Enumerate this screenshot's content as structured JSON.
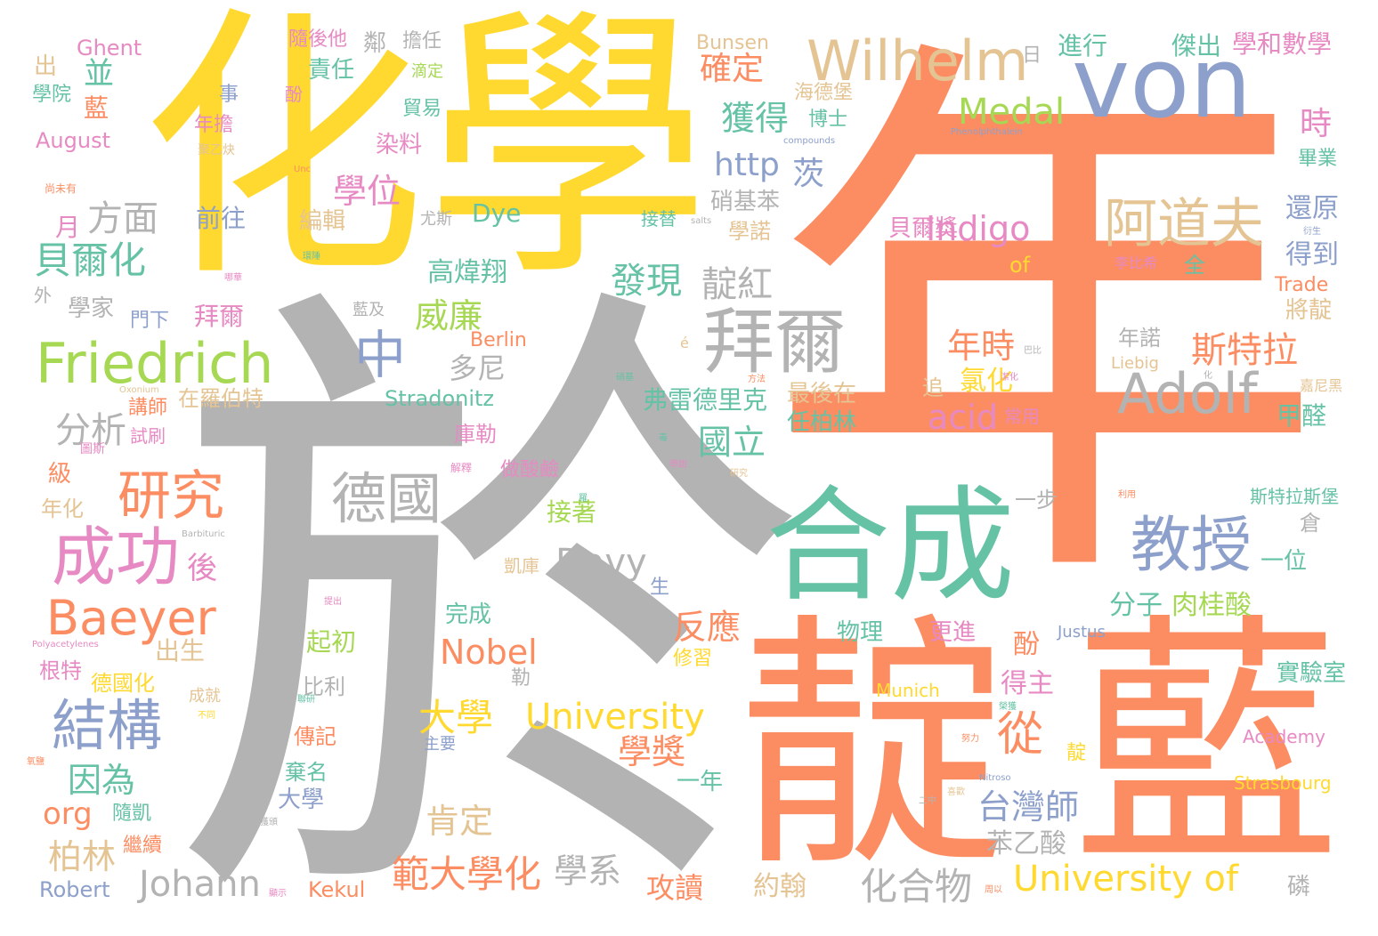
{
  "palette": {
    "gray": "#b3b3b3",
    "orange": "#fc8d62",
    "yellow": "#ffd92f",
    "teal": "#66c2a5",
    "blue": "#8da0cb",
    "pink": "#e78ac3",
    "green": "#a6d854",
    "tan": "#e5c494"
  },
  "words": [
    {
      "text": "於",
      "color": "gray"
    },
    {
      "text": "年",
      "color": "orange"
    },
    {
      "text": "化學",
      "color": "yellow"
    },
    {
      "text": "靛",
      "color": "orange"
    },
    {
      "text": "藍",
      "color": "orange"
    },
    {
      "text": "von",
      "color": "blue"
    },
    {
      "text": "合成",
      "color": "teal"
    },
    {
      "text": "Wilhelm",
      "color": "tan"
    },
    {
      "text": "拜爾",
      "color": "gray"
    },
    {
      "text": "Friedrich",
      "color": "green"
    },
    {
      "text": "阿道夫",
      "color": "tan"
    },
    {
      "text": "Adolf",
      "color": "gray"
    },
    {
      "text": "教授",
      "color": "blue"
    },
    {
      "text": "成功",
      "color": "pink"
    },
    {
      "text": "研究",
      "color": "orange"
    },
    {
      "text": "Baeyer",
      "color": "orange"
    },
    {
      "text": "結構",
      "color": "blue"
    },
    {
      "text": "德國",
      "color": "gray"
    },
    {
      "text": "University",
      "color": "yellow"
    },
    {
      "text": "University of",
      "color": "yellow"
    },
    {
      "text": "中",
      "color": "blue"
    },
    {
      "text": "Medal",
      "color": "green"
    },
    {
      "text": "Indigo",
      "color": "pink"
    },
    {
      "text": "Nobel",
      "color": "orange"
    },
    {
      "text": "Davy",
      "color": "gray"
    },
    {
      "text": "Johann",
      "color": "gray"
    },
    {
      "text": "貝爾化",
      "color": "teal"
    },
    {
      "text": "方面",
      "color": "gray"
    },
    {
      "text": "範大學化",
      "color": "orange"
    },
    {
      "text": "化合物",
      "color": "gray"
    },
    {
      "text": "台灣師",
      "color": "blue"
    },
    {
      "text": "大學",
      "color": "yellow"
    },
    {
      "text": "從",
      "color": "orange"
    },
    {
      "text": "斯特拉",
      "color": "orange"
    },
    {
      "text": "acid",
      "color": "pink"
    },
    {
      "text": "http",
      "color": "blue"
    },
    {
      "text": "學位",
      "color": "pink"
    },
    {
      "text": "獲得",
      "color": "teal"
    },
    {
      "text": "確定",
      "color": "orange"
    },
    {
      "text": "發現",
      "color": "teal"
    },
    {
      "text": "靛紅",
      "color": "gray"
    },
    {
      "text": "威廉",
      "color": "green"
    },
    {
      "text": "高煒翔",
      "color": "teal"
    },
    {
      "text": "反應",
      "color": "orange"
    },
    {
      "text": "學獎",
      "color": "orange"
    },
    {
      "text": "國立",
      "color": "teal"
    },
    {
      "text": "年時",
      "color": "orange"
    },
    {
      "text": "氯化",
      "color": "yellow"
    },
    {
      "text": "分析",
      "color": "gray"
    },
    {
      "text": "多尼",
      "color": "gray"
    },
    {
      "text": "肯定",
      "color": "tan"
    },
    {
      "text": "學系",
      "color": "gray"
    },
    {
      "text": "柏林",
      "color": "tan"
    },
    {
      "text": "因為",
      "color": "teal"
    },
    {
      "text": "org",
      "color": "orange"
    },
    {
      "text": "Robert",
      "color": "blue"
    },
    {
      "text": "Kekul",
      "color": "orange"
    },
    {
      "text": "攻讀",
      "color": "orange"
    },
    {
      "text": "約翰",
      "color": "tan"
    },
    {
      "text": "苯乙酸",
      "color": "gray"
    },
    {
      "text": "弗雷德里克",
      "color": "teal"
    },
    {
      "text": "最後在",
      "color": "tan"
    },
    {
      "text": "任柏林",
      "color": "teal"
    },
    {
      "text": "得主",
      "color": "pink"
    },
    {
      "text": "分子",
      "color": "teal"
    },
    {
      "text": "肉桂酸",
      "color": "green"
    },
    {
      "text": "還原",
      "color": "blue"
    },
    {
      "text": "得到",
      "color": "blue"
    },
    {
      "text": "將靛",
      "color": "tan"
    },
    {
      "text": "甲醛",
      "color": "teal"
    },
    {
      "text": "實驗室",
      "color": "teal"
    },
    {
      "text": "Academy",
      "color": "pink"
    },
    {
      "text": "Strasbourg",
      "color": "yellow"
    },
    {
      "text": "Trade",
      "color": "orange"
    },
    {
      "text": "Liebig",
      "color": "tan"
    },
    {
      "text": "傑出",
      "color": "teal"
    },
    {
      "text": "學和數學",
      "color": "pink"
    },
    {
      "text": "進行",
      "color": "teal"
    },
    {
      "text": "Bunsen",
      "color": "tan"
    },
    {
      "text": "海德堡",
      "color": "tan"
    },
    {
      "text": "博士",
      "color": "teal"
    },
    {
      "text": "Ghent",
      "color": "pink"
    },
    {
      "text": "August",
      "color": "pink"
    },
    {
      "text": "學院",
      "color": "teal"
    },
    {
      "text": "並",
      "color": "teal"
    },
    {
      "text": "隨後他",
      "color": "pink"
    },
    {
      "text": "責任",
      "color": "teal"
    },
    {
      "text": "擔任",
      "color": "gray"
    },
    {
      "text": "鄰",
      "color": "gray"
    },
    {
      "text": "染料",
      "color": "pink"
    },
    {
      "text": "貿易",
      "color": "teal"
    },
    {
      "text": "前往",
      "color": "blue"
    },
    {
      "text": "編輯",
      "color": "tan"
    },
    {
      "text": "Dye",
      "color": "teal"
    },
    {
      "text": "接替",
      "color": "teal"
    },
    {
      "text": "學諾",
      "color": "tan"
    },
    {
      "text": "硝基苯",
      "color": "gray"
    },
    {
      "text": "茨",
      "color": "blue"
    },
    {
      "text": "貝爾獎",
      "color": "pink"
    },
    {
      "text": "of",
      "color": "yellow"
    },
    {
      "text": "全",
      "color": "teal"
    },
    {
      "text": "李比希",
      "color": "pink"
    },
    {
      "text": "拜爾",
      "color": "pink"
    },
    {
      "text": "門下",
      "color": "blue"
    },
    {
      "text": "學家",
      "color": "gray"
    },
    {
      "text": "Berlin",
      "color": "orange"
    },
    {
      "text": "Stradonitz",
      "color": "teal"
    },
    {
      "text": "在羅伯特",
      "color": "tan"
    },
    {
      "text": "講師",
      "color": "orange"
    },
    {
      "text": "試刷",
      "color": "pink"
    },
    {
      "text": "庫勒",
      "color": "pink"
    },
    {
      "text": "接著",
      "color": "green"
    },
    {
      "text": "凱庫",
      "color": "tan"
    },
    {
      "text": "完成",
      "color": "teal"
    },
    {
      "text": "起初",
      "color": "green"
    },
    {
      "text": "比利",
      "color": "gray"
    },
    {
      "text": "傳記",
      "color": "orange"
    },
    {
      "text": "棄名",
      "color": "teal"
    },
    {
      "text": "大學",
      "color": "blue"
    },
    {
      "text": "一年",
      "color": "teal"
    },
    {
      "text": "更進",
      "color": "pink"
    },
    {
      "text": "物理",
      "color": "teal"
    },
    {
      "text": "修習",
      "color": "yellow"
    },
    {
      "text": "酚",
      "color": "orange"
    },
    {
      "text": "Munich",
      "color": "yellow"
    },
    {
      "text": "Justus",
      "color": "blue"
    },
    {
      "text": "一位",
      "color": "teal"
    },
    {
      "text": "倉",
      "color": "gray"
    },
    {
      "text": "斯特拉斯堡",
      "color": "teal"
    },
    {
      "text": "一步",
      "color": "gray"
    },
    {
      "text": "年諾",
      "color": "gray"
    },
    {
      "text": "常用",
      "color": "pink"
    },
    {
      "text": "追",
      "color": "tan"
    },
    {
      "text": "畢業",
      "color": "teal"
    },
    {
      "text": "時",
      "color": "pink"
    },
    {
      "text": "日",
      "color": "gray"
    },
    {
      "text": "出生",
      "color": "tan"
    },
    {
      "text": "德國化",
      "color": "yellow"
    },
    {
      "text": "根特",
      "color": "pink"
    },
    {
      "text": "成就",
      "color": "tan"
    },
    {
      "text": "繼續",
      "color": "orange"
    },
    {
      "text": "隨凱",
      "color": "teal"
    },
    {
      "text": "級",
      "color": "orange"
    },
    {
      "text": "年化",
      "color": "tan"
    },
    {
      "text": "後",
      "color": "pink"
    },
    {
      "text": "月",
      "color": "pink"
    },
    {
      "text": "年擔",
      "color": "pink"
    },
    {
      "text": "藍",
      "color": "orange"
    },
    {
      "text": "事",
      "color": "blue"
    },
    {
      "text": "出",
      "color": "tan"
    },
    {
      "text": "滴定",
      "color": "green"
    },
    {
      "text": "酚",
      "color": "pink"
    },
    {
      "text": "做酸鹼",
      "color": "pink"
    },
    {
      "text": "磷",
      "color": "gray"
    },
    {
      "text": "靛",
      "color": "yellow"
    },
    {
      "text": "三",
      "color": "gray"
    },
    {
      "text": "勒",
      "color": "gray"
    },
    {
      "text": "生",
      "color": "blue"
    },
    {
      "text": "主要",
      "color": "blue"
    },
    {
      "text": "尤斯",
      "color": "gray"
    },
    {
      "text": "外",
      "color": "gray"
    },
    {
      "text": "Phenolphthalein",
      "color": "blue"
    },
    {
      "text": "compounds",
      "color": "blue"
    },
    {
      "text": "Polyacetylenes",
      "color": "pink"
    },
    {
      "text": "Barbituric",
      "color": "gray"
    },
    {
      "text": "Oxonium",
      "color": "tan"
    },
    {
      "text": "Nitroso",
      "color": "blue"
    },
    {
      "text": "Unc",
      "color": "orange"
    },
    {
      "text": "salts",
      "color": "gray"
    },
    {
      "text": "é",
      "color": "tan"
    },
    {
      "text": "聚乙炔",
      "color": "tan"
    },
    {
      "text": "尚未有",
      "color": "orange"
    },
    {
      "text": "環陲",
      "color": "teal"
    },
    {
      "text": "哪華",
      "color": "pink"
    },
    {
      "text": "藍及",
      "color": "gray"
    },
    {
      "text": "巴比",
      "color": "gray"
    },
    {
      "text": "方法",
      "color": "orange"
    },
    {
      "text": "硝基",
      "color": "teal"
    },
    {
      "text": "潔化",
      "color": "pink"
    },
    {
      "text": "嘉尼黑",
      "color": "tan"
    },
    {
      "text": "利用",
      "color": "orange"
    },
    {
      "text": "衍生",
      "color": "blue"
    },
    {
      "text": "提出",
      "color": "pink"
    },
    {
      "text": "圖斯",
      "color": "pink"
    },
    {
      "text": "解釋",
      "color": "pink"
    },
    {
      "text": "聯研",
      "color": "teal"
    },
    {
      "text": "學說",
      "color": "pink"
    },
    {
      "text": "喜歡",
      "color": "tan"
    },
    {
      "text": "氧鹽",
      "color": "orange"
    },
    {
      "text": "不同",
      "color": "yellow"
    },
    {
      "text": "研究",
      "color": "tan"
    },
    {
      "text": "顯示",
      "color": "pink"
    },
    {
      "text": "周以",
      "color": "orange"
    },
    {
      "text": "努力",
      "color": "orange"
    },
    {
      "text": "二中",
      "color": "gray"
    },
    {
      "text": "榮獲",
      "color": "teal"
    },
    {
      "text": "獲頒",
      "color": "gray"
    },
    {
      "text": "羅",
      "color": "teal"
    },
    {
      "text": "毒",
      "color": "teal"
    },
    {
      "text": "化",
      "color": "gray"
    },
    {
      "text": "量",
      "color": "orange"
    }
  ]
}
